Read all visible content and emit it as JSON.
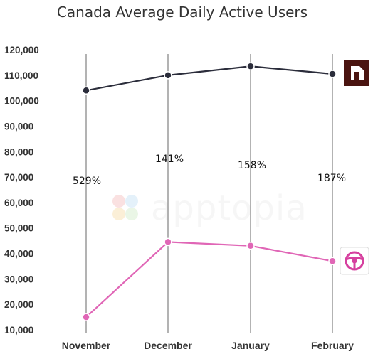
{
  "chart_data": {
    "type": "line",
    "title": "Canada Average Daily Active Users",
    "categories": [
      "November",
      "December",
      "January",
      "February"
    ],
    "yticks": [
      "120,000",
      "110,000",
      "100,000",
      "90,000",
      "80,000",
      "70,000",
      "60,000",
      "50,000",
      "40,000",
      "30,000",
      "20,000",
      "10,000"
    ],
    "ylim": [
      10000,
      120000
    ],
    "grid": "vertical lines at each category",
    "series": [
      {
        "values": [
          104000,
          110000,
          113500,
          110500
        ],
        "color": "#2b2d3b",
        "icon": "app-logo-dark-red-icon"
      },
      {
        "values": [
          15000,
          44500,
          43000,
          37000
        ],
        "color": "#e066b6",
        "icon": "steering-wheel-icon"
      }
    ],
    "annotations": [
      "529%",
      "141%",
      "158%",
      "187%"
    ],
    "watermark": "apptopia"
  }
}
